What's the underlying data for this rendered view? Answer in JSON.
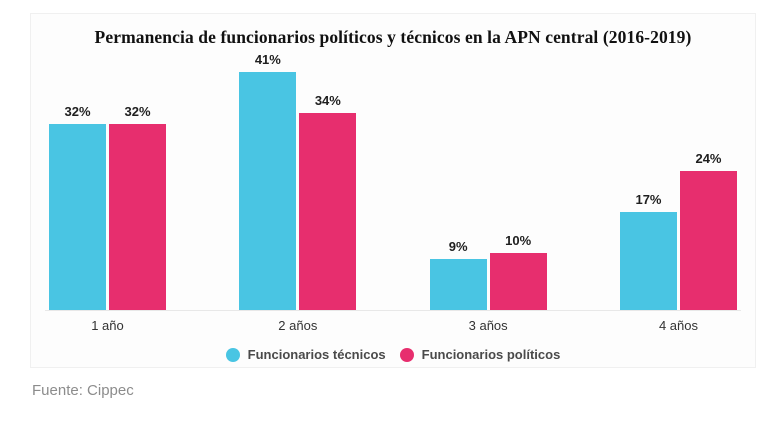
{
  "chart": {
    "title": "Permanencia de funcionarios políticos y técnicos en la APN central (2016-2019)"
  },
  "chart_data": {
    "type": "bar",
    "title": "Permanencia de funcionarios políticos y técnicos en la APN central (2016-2019)",
    "categories": [
      "1 año",
      "2 años",
      "3 años",
      "4 años"
    ],
    "series": [
      {
        "name": "Funcionarios técnicos",
        "color": "#49C5E3",
        "values": [
          32,
          41,
          9,
          17
        ]
      },
      {
        "name": "Funcionarios políticos",
        "color": "#E72E6E",
        "values": [
          32,
          34,
          10,
          24
        ]
      }
    ],
    "unit": "%",
    "value_labels": true,
    "ylim": [
      0,
      45
    ],
    "xlabel": "",
    "ylabel": "",
    "grid": false,
    "legend_position": "bottom"
  },
  "source": "Fuente: Cippec"
}
